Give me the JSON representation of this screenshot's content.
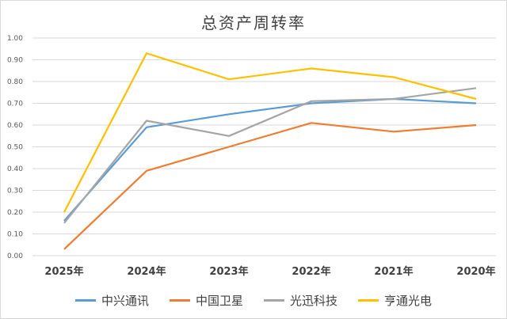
{
  "chart_data": {
    "type": "line",
    "title": "总资产周转率",
    "categories": [
      "2025年",
      "2024年",
      "2023年",
      "2022年",
      "2021年",
      "2020年"
    ],
    "ylim": [
      0,
      1.0
    ],
    "yticks": [
      "0.00",
      "0.10",
      "0.20",
      "0.30",
      "0.40",
      "0.50",
      "0.60",
      "0.70",
      "0.80",
      "0.90",
      "1.00"
    ],
    "grid": true,
    "legend_position": "bottom",
    "series": [
      {
        "name": "中兴通讯",
        "color": "#5b9bd5",
        "values": [
          0.16,
          0.59,
          0.65,
          0.7,
          0.72,
          0.7
        ]
      },
      {
        "name": "中国卫星",
        "color": "#ed7d31",
        "values": [
          0.03,
          0.39,
          0.5,
          0.61,
          0.57,
          0.6
        ]
      },
      {
        "name": "光迅科技",
        "color": "#a5a5a5",
        "values": [
          0.15,
          0.62,
          0.55,
          0.71,
          0.72,
          0.77
        ]
      },
      {
        "name": "亨通光电",
        "color": "#ffc000",
        "values": [
          0.2,
          0.93,
          0.81,
          0.86,
          0.82,
          0.72
        ]
      }
    ]
  }
}
